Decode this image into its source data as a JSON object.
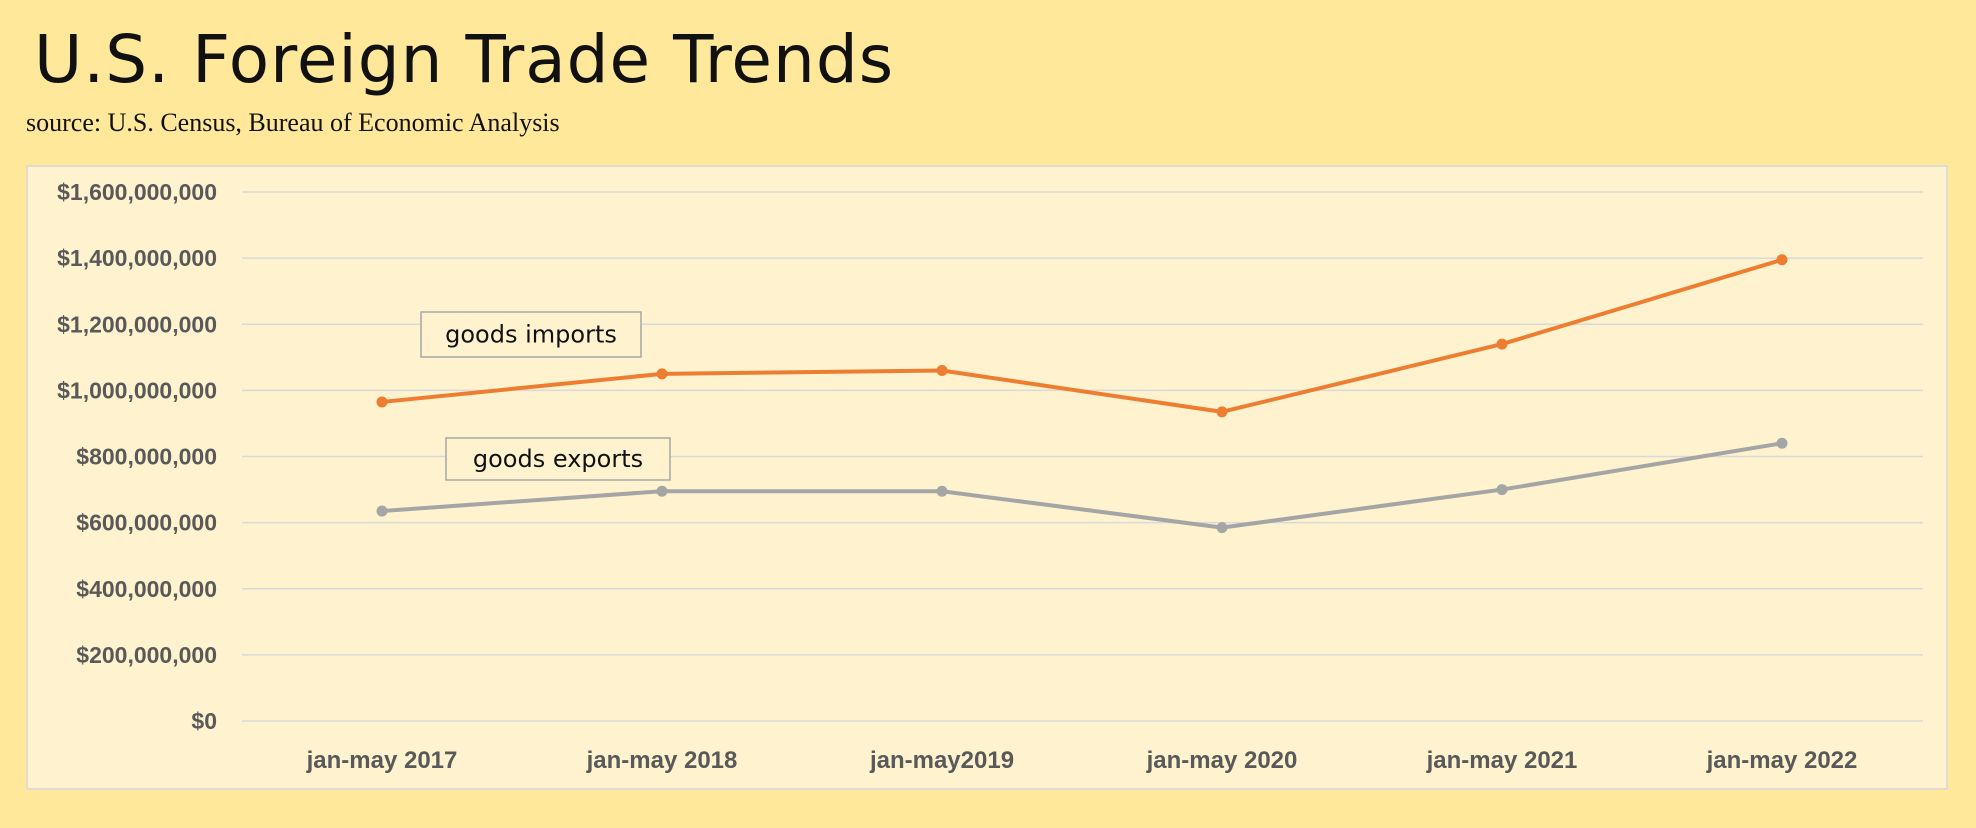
{
  "header": {
    "title": "U.S. Foreign Trade Trends",
    "subtitle": "source: U.S. Census, Bureau of Economic Analysis"
  },
  "chart_data": {
    "type": "line",
    "title": "U.S. Foreign Trade Trends",
    "subtitle": "source: U.S. Census, Bureau of Economic Analysis",
    "xlabel": "",
    "ylabel": "",
    "categories": [
      "jan-may 2017",
      "jan-may 2018",
      "jan-may2019",
      "jan-may 2020",
      "jan-may 2021",
      "jan-may 2022"
    ],
    "y_ticks": [
      "$0",
      "$200,000,000",
      "$400,000,000",
      "$600,000,000",
      "$800,000,000",
      "$1,000,000,000",
      "$1,200,000,000",
      "$1,400,000,000",
      "$1,600,000,000"
    ],
    "ylim": [
      0,
      1600000000
    ],
    "grid": true,
    "legend": "none",
    "series": [
      {
        "name": "goods imports",
        "color": "#ED7D31",
        "values": [
          965000000,
          1050000000,
          1060000000,
          935000000,
          1140000000,
          1395000000
        ]
      },
      {
        "name": "goods exports",
        "color": "#A5A5A5",
        "values": [
          635000000,
          695000000,
          695000000,
          585000000,
          700000000,
          840000000
        ]
      }
    ]
  }
}
